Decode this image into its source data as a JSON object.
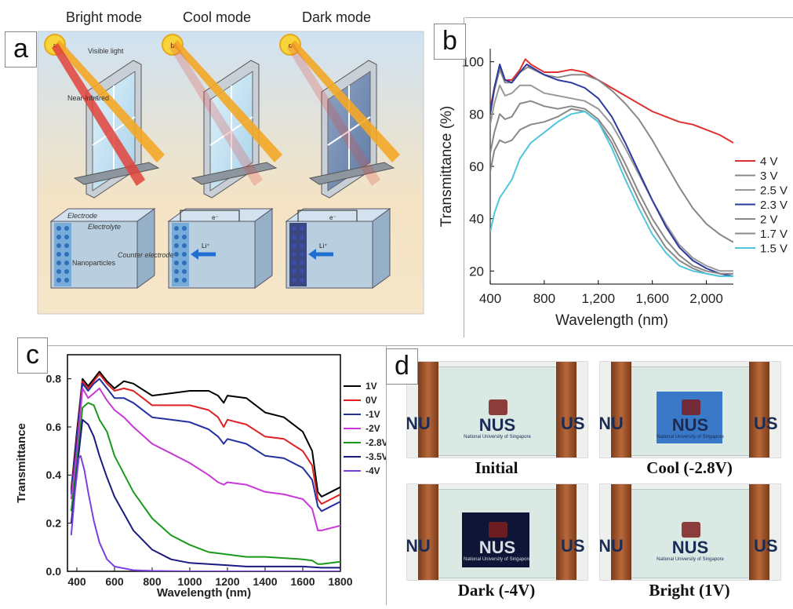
{
  "panel_a": {
    "label": "a",
    "modes": [
      "Bright mode",
      "Cool mode",
      "Dark mode"
    ],
    "callouts": {
      "visible": "Visible light",
      "nir": "Near-infrared",
      "electrode": "Electrode",
      "electrolyte": "Electrolyte",
      "counter": "Counter electrode",
      "nanoparticles": "Nanoparticles",
      "electron": "e⁻",
      "ion": "Li⁺"
    },
    "sun_badges": [
      "a",
      "b",
      "c"
    ]
  },
  "panel_b": {
    "label": "b",
    "chart_data": {
      "type": "line",
      "xlabel": "Wavelength (nm)",
      "ylabel": "Transmittance (%)",
      "xlim": [
        400,
        2200
      ],
      "ylim": [
        15,
        105
      ],
      "xticks": [
        "400",
        "800",
        "1,200",
        "1,600",
        "2,000"
      ],
      "yticks": [
        "20",
        "40",
        "60",
        "80",
        "100"
      ],
      "legend_position": "right",
      "series": [
        {
          "name": "4 V",
          "color": "#e03030",
          "x": [
            400,
            430,
            470,
            510,
            560,
            620,
            660,
            700,
            800,
            900,
            1000,
            1100,
            1200,
            1300,
            1400,
            1500,
            1600,
            1700,
            1800,
            1900,
            2000,
            2100,
            2200
          ],
          "y": [
            82,
            90,
            98,
            93,
            93,
            97,
            101,
            99,
            96,
            96,
            97,
            96,
            93,
            90,
            87,
            84,
            81,
            79,
            77,
            76,
            74,
            72,
            69
          ]
        },
        {
          "name": "3 V",
          "color": "#888888",
          "x": [
            400,
            430,
            470,
            510,
            560,
            620,
            680,
            800,
            900,
            1000,
            1100,
            1200,
            1300,
            1400,
            1500,
            1600,
            1700,
            1800,
            1900,
            2000,
            2100,
            2200
          ],
          "y": [
            80,
            89,
            97,
            92,
            92,
            96,
            98,
            95,
            94,
            95,
            95,
            93,
            89,
            84,
            78,
            70,
            61,
            52,
            44,
            38,
            34,
            31
          ]
        },
        {
          "name": "2.5 V",
          "color": "#999999",
          "x": [
            400,
            430,
            470,
            510,
            560,
            620,
            700,
            800,
            900,
            1000,
            1100,
            1200,
            1300,
            1400,
            1500,
            1600,
            1700,
            1800,
            1900,
            2000,
            2100,
            2200
          ],
          "y": [
            76,
            84,
            91,
            87,
            88,
            91,
            91,
            88,
            87,
            86,
            85,
            82,
            76,
            67,
            57,
            47,
            38,
            30,
            25,
            22,
            20,
            20
          ]
        },
        {
          "name": "2.3 V",
          "color": "#2b3a9e",
          "x": [
            400,
            430,
            470,
            510,
            560,
            620,
            670,
            800,
            900,
            1000,
            1100,
            1200,
            1300,
            1400,
            1500,
            1600,
            1700,
            1800,
            1900,
            2000,
            2100,
            2200
          ],
          "y": [
            80,
            90,
            99,
            93,
            92,
            96,
            99,
            95,
            93,
            92,
            90,
            86,
            79,
            69,
            58,
            47,
            37,
            29,
            24,
            21,
            19,
            18
          ]
        },
        {
          "name": "2 V",
          "color": "#888888",
          "x": [
            400,
            430,
            470,
            510,
            560,
            620,
            700,
            800,
            900,
            1000,
            1100,
            1200,
            1300,
            1400,
            1500,
            1600,
            1700,
            1800,
            1900,
            2000,
            2100,
            2200
          ],
          "y": [
            65,
            73,
            80,
            78,
            79,
            84,
            85,
            83,
            82,
            83,
            82,
            78,
            71,
            61,
            50,
            40,
            32,
            26,
            22,
            20,
            19,
            19
          ]
        },
        {
          "name": "1.7 V",
          "color": "#888888",
          "x": [
            400,
            430,
            470,
            510,
            560,
            620,
            700,
            800,
            900,
            1000,
            1100,
            1200,
            1300,
            1400,
            1500,
            1600,
            1700,
            1800,
            1900,
            2000,
            2100,
            2200
          ],
          "y": [
            58,
            66,
            70,
            69,
            70,
            74,
            76,
            77,
            79,
            82,
            81,
            77,
            69,
            58,
            47,
            37,
            29,
            24,
            21,
            19,
            18,
            18
          ]
        },
        {
          "name": "1.5 V",
          "color": "#4fc6dc",
          "x": [
            400,
            430,
            470,
            510,
            560,
            620,
            700,
            800,
            900,
            1000,
            1100,
            1200,
            1300,
            1400,
            1500,
            1600,
            1700,
            1800,
            1900,
            2000,
            2100,
            2200
          ],
          "y": [
            35,
            42,
            48,
            51,
            55,
            63,
            69,
            73,
            77,
            80,
            81,
            77,
            67,
            55,
            44,
            34,
            27,
            22,
            20,
            19,
            18,
            18
          ]
        }
      ]
    }
  },
  "panel_c": {
    "label": "c",
    "chart_data": {
      "type": "line",
      "xlabel": "Wavelength (nm)",
      "ylabel": "Transmittance",
      "xlim": [
        350,
        1800
      ],
      "ylim": [
        0,
        0.9
      ],
      "xticks": [
        "400",
        "600",
        "800",
        "1000",
        "1200",
        "1400",
        "1600",
        "1800"
      ],
      "yticks": [
        "0.0",
        "0.2",
        "0.4",
        "0.6",
        "0.8"
      ],
      "legend_position": "right",
      "series": [
        {
          "name": "1V",
          "color": "#000000",
          "x": [
            370,
            400,
            430,
            460,
            490,
            520,
            560,
            600,
            650,
            700,
            800,
            900,
            1000,
            1100,
            1150,
            1180,
            1200,
            1300,
            1400,
            1500,
            1600,
            1650,
            1680,
            1700,
            1750,
            1800
          ],
          "y": [
            0.34,
            0.58,
            0.8,
            0.77,
            0.8,
            0.83,
            0.79,
            0.76,
            0.79,
            0.78,
            0.73,
            0.74,
            0.75,
            0.75,
            0.73,
            0.7,
            0.73,
            0.72,
            0.66,
            0.64,
            0.58,
            0.5,
            0.33,
            0.31,
            0.33,
            0.35
          ]
        },
        {
          "name": "0V",
          "color": "#e02020",
          "x": [
            370,
            400,
            430,
            460,
            490,
            520,
            560,
            600,
            650,
            700,
            800,
            900,
            1000,
            1100,
            1150,
            1180,
            1200,
            1300,
            1400,
            1500,
            1600,
            1650,
            1680,
            1700,
            1750,
            1800
          ],
          "y": [
            0.33,
            0.56,
            0.79,
            0.76,
            0.79,
            0.82,
            0.78,
            0.75,
            0.76,
            0.75,
            0.69,
            0.69,
            0.69,
            0.67,
            0.64,
            0.6,
            0.63,
            0.61,
            0.56,
            0.55,
            0.5,
            0.44,
            0.3,
            0.28,
            0.3,
            0.32
          ]
        },
        {
          "name": "-1V",
          "color": "#2430a0",
          "x": [
            370,
            400,
            430,
            460,
            490,
            520,
            560,
            600,
            650,
            700,
            800,
            900,
            1000,
            1100,
            1150,
            1180,
            1200,
            1300,
            1400,
            1500,
            1600,
            1650,
            1680,
            1700,
            1750,
            1800
          ],
          "y": [
            0.32,
            0.55,
            0.78,
            0.75,
            0.78,
            0.8,
            0.76,
            0.72,
            0.72,
            0.7,
            0.64,
            0.63,
            0.62,
            0.59,
            0.56,
            0.53,
            0.55,
            0.53,
            0.48,
            0.47,
            0.43,
            0.38,
            0.27,
            0.25,
            0.27,
            0.29
          ]
        },
        {
          "name": "-2V",
          "color": "#c838d8",
          "x": [
            370,
            400,
            430,
            460,
            490,
            520,
            560,
            600,
            650,
            700,
            800,
            900,
            1000,
            1100,
            1150,
            1180,
            1200,
            1300,
            1400,
            1500,
            1600,
            1650,
            1680,
            1700,
            1750,
            1800
          ],
          "y": [
            0.3,
            0.5,
            0.76,
            0.72,
            0.74,
            0.76,
            0.71,
            0.67,
            0.64,
            0.6,
            0.53,
            0.49,
            0.45,
            0.4,
            0.37,
            0.36,
            0.37,
            0.36,
            0.33,
            0.32,
            0.3,
            0.26,
            0.17,
            0.17,
            0.18,
            0.19
          ]
        },
        {
          "name": "-2.8V",
          "color": "#1a9a1a",
          "x": [
            370,
            400,
            430,
            460,
            490,
            520,
            560,
            600,
            700,
            800,
            900,
            1000,
            1100,
            1200,
            1300,
            1400,
            1500,
            1600,
            1650,
            1680,
            1700,
            1800
          ],
          "y": [
            0.25,
            0.45,
            0.68,
            0.7,
            0.69,
            0.63,
            0.58,
            0.48,
            0.33,
            0.22,
            0.15,
            0.11,
            0.08,
            0.07,
            0.06,
            0.06,
            0.055,
            0.05,
            0.045,
            0.03,
            0.03,
            0.04
          ]
        },
        {
          "name": "-3.5V",
          "color": "#1a1a80",
          "x": [
            370,
            400,
            430,
            460,
            490,
            520,
            560,
            600,
            700,
            800,
            900,
            1000,
            1100,
            1200,
            1300,
            1400,
            1500,
            1600,
            1700,
            1800
          ],
          "y": [
            0.2,
            0.42,
            0.63,
            0.61,
            0.56,
            0.48,
            0.39,
            0.31,
            0.17,
            0.09,
            0.05,
            0.035,
            0.03,
            0.025,
            0.02,
            0.02,
            0.02,
            0.02,
            0.015,
            0.015
          ]
        },
        {
          "name": "-4V",
          "color": "#7a40e0",
          "x": [
            370,
            390,
            410,
            420,
            440,
            460,
            490,
            520,
            560,
            600,
            700,
            800,
            1000,
            1200,
            1400,
            1600,
            1800
          ],
          "y": [
            0.15,
            0.33,
            0.47,
            0.48,
            0.42,
            0.33,
            0.21,
            0.12,
            0.05,
            0.02,
            0.005,
            0.002,
            0.0,
            0.0,
            0.0,
            0.0,
            0.0
          ]
        }
      ]
    }
  },
  "panel_d": {
    "label": "d",
    "photos": [
      {
        "caption": "Initial",
        "film": "none"
      },
      {
        "caption": "Cool (-2.8V)",
        "film": "blue"
      },
      {
        "caption": "Dark (-4V)",
        "film": "dark"
      },
      {
        "caption": "Bright (1V)",
        "film": "none"
      }
    ],
    "logo_text": "NUS",
    "logo_side_left": "NU",
    "logo_side_right": "US",
    "institution": "National University of Singapore"
  }
}
